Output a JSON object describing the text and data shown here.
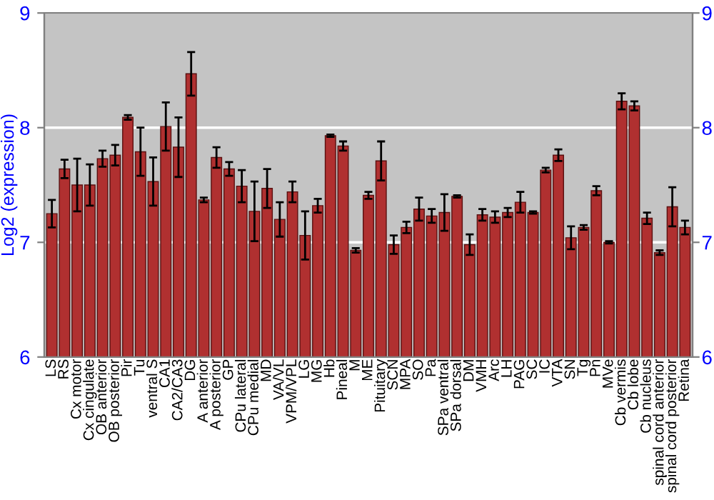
{
  "chart_data": {
    "type": "bar",
    "ylabel": "Log2 (expression)",
    "color": "#b03030",
    "grid": "y",
    "categories": [
      "LS",
      "RS",
      "Cx motor",
      "Cx cingulate",
      "OB anterior",
      "OB posterior",
      "Pir",
      "Tu",
      "ventral S",
      "CA1",
      "CA2/CA3",
      "DG",
      "A anterior",
      "A posterior",
      "GP",
      "CPu lateral",
      "CPu medial",
      "MD",
      "VA/VL",
      "VPM/VPL",
      "LG",
      "MG",
      "Hb",
      "Pineal",
      "M",
      "ME",
      "Pituitary",
      "SCN",
      "MPA",
      "SO",
      "Pa",
      "SPa ventral",
      "SPa dorsal",
      "DM",
      "VMH",
      "Arc",
      "LH",
      "PAG",
      "SC",
      "IC",
      "VTA",
      "SN",
      "Tg",
      "Pn",
      "MVe",
      "Cb vermis",
      "Cb lobe",
      "Cb nucleus",
      "spinal cord anterior",
      "spinal cord posterior",
      "Retina"
    ],
    "values": [
      7.25,
      7.64,
      7.5,
      7.5,
      7.73,
      7.76,
      8.09,
      7.79,
      7.53,
      8.01,
      7.83,
      8.47,
      7.37,
      7.74,
      7.64,
      7.49,
      7.27,
      7.47,
      7.2,
      7.44,
      7.06,
      7.32,
      7.93,
      7.84,
      6.93,
      7.41,
      7.71,
      6.98,
      7.13,
      7.29,
      7.23,
      7.26,
      7.4,
      6.98,
      7.24,
      7.22,
      7.26,
      7.35,
      7.26,
      7.63,
      7.76,
      7.04,
      7.13,
      7.45,
      7.0,
      8.23,
      8.19,
      7.21,
      6.91,
      7.31,
      7.13
    ],
    "errors": [
      0.12,
      0.08,
      0.23,
      0.18,
      0.07,
      0.09,
      0.02,
      0.21,
      0.21,
      0.21,
      0.26,
      0.19,
      0.02,
      0.09,
      0.06,
      0.14,
      0.26,
      0.17,
      0.15,
      0.09,
      0.21,
      0.06,
      0.01,
      0.04,
      0.02,
      0.03,
      0.17,
      0.08,
      0.05,
      0.1,
      0.06,
      0.16,
      0.01,
      0.09,
      0.05,
      0.05,
      0.04,
      0.09,
      0.01,
      0.02,
      0.05,
      0.1,
      0.02,
      0.04,
      0.01,
      0.07,
      0.04,
      0.05,
      0.02,
      0.17,
      0.06
    ],
    "ylim": [
      6,
      9
    ],
    "yticks": [
      6,
      7,
      8,
      9
    ],
    "y2lim": [
      6,
      9
    ],
    "y2ticks": [
      6,
      7,
      8,
      9
    ]
  }
}
